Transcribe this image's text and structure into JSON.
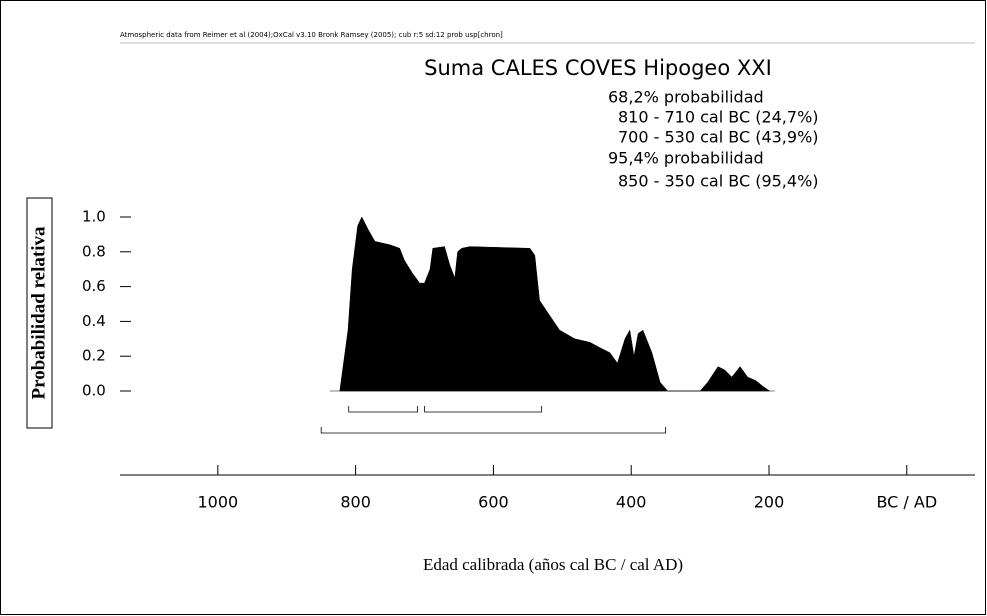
{
  "chart_data": {
    "type": "area",
    "note": "Atmospheric data from Reimer et al (2004);OxCal v3.10 Bronk Ramsey (2005); cub r:5 sd:12 prob usp[chron]",
    "title": "Suma CALES COVES Hipogeo XXI",
    "annotations": [
      "68,2% probabilidad",
      "810 - 710 cal BC (24,7%)",
      "700 - 530 cal BC (43,9%)",
      "95,4% probabilidad",
      "850 - 350 cal BC (95,4%)"
    ],
    "y_label": "Probabilidad relativa",
    "x_label": "Edad calibrada (años cal BC / cal AD)",
    "x": [
      -823,
      -811,
      -805,
      -797,
      -791,
      -782,
      -772,
      -750,
      -736,
      -729,
      -718,
      -707,
      -700,
      -692,
      -688,
      -671,
      -663,
      -656,
      -652,
      -646,
      -634,
      -547,
      -540,
      -533,
      -521,
      -504,
      -482,
      -460,
      -446,
      -431,
      -420,
      -409,
      -402,
      -396,
      -390,
      -383,
      -370,
      -358,
      -347,
      -300,
      -289,
      -274,
      -264,
      -254,
      -242,
      -231,
      -219,
      -210,
      -199
    ],
    "values": [
      0,
      0.35,
      0.7,
      0.95,
      1.0,
      0.93,
      0.86,
      0.84,
      0.82,
      0.75,
      0.68,
      0.62,
      0.62,
      0.7,
      0.82,
      0.83,
      0.72,
      0.65,
      0.8,
      0.82,
      0.83,
      0.82,
      0.78,
      0.52,
      0.45,
      0.35,
      0.3,
      0.28,
      0.25,
      0.22,
      0.16,
      0.3,
      0.35,
      0.2,
      0.33,
      0.35,
      0.22,
      0.05,
      0,
      0,
      0.05,
      0.14,
      0.12,
      0.08,
      0.14,
      0.08,
      0.06,
      0.03,
      0
    ],
    "color": "#000000",
    "ranges_68": [
      {
        "from": -810,
        "to": -710
      },
      {
        "from": -700,
        "to": -530
      }
    ],
    "ranges_95": [
      {
        "from": -850,
        "to": -350
      }
    ],
    "xlim": [
      -1142,
      99
    ],
    "xticks": [
      {
        "value": -1000,
        "label": "1000"
      },
      {
        "value": -800,
        "label": "800"
      },
      {
        "value": -600,
        "label": "600"
      },
      {
        "value": -400,
        "label": "400"
      },
      {
        "value": -200,
        "label": "200"
      },
      {
        "value": 0,
        "label": "BC / AD"
      }
    ],
    "ylim": [
      0,
      1
    ],
    "yticks": [
      {
        "value": 0,
        "label": "0.0"
      },
      0.2,
      0.4,
      0.6,
      0.8,
      {
        "value": 1,
        "label": "1.0"
      }
    ]
  }
}
